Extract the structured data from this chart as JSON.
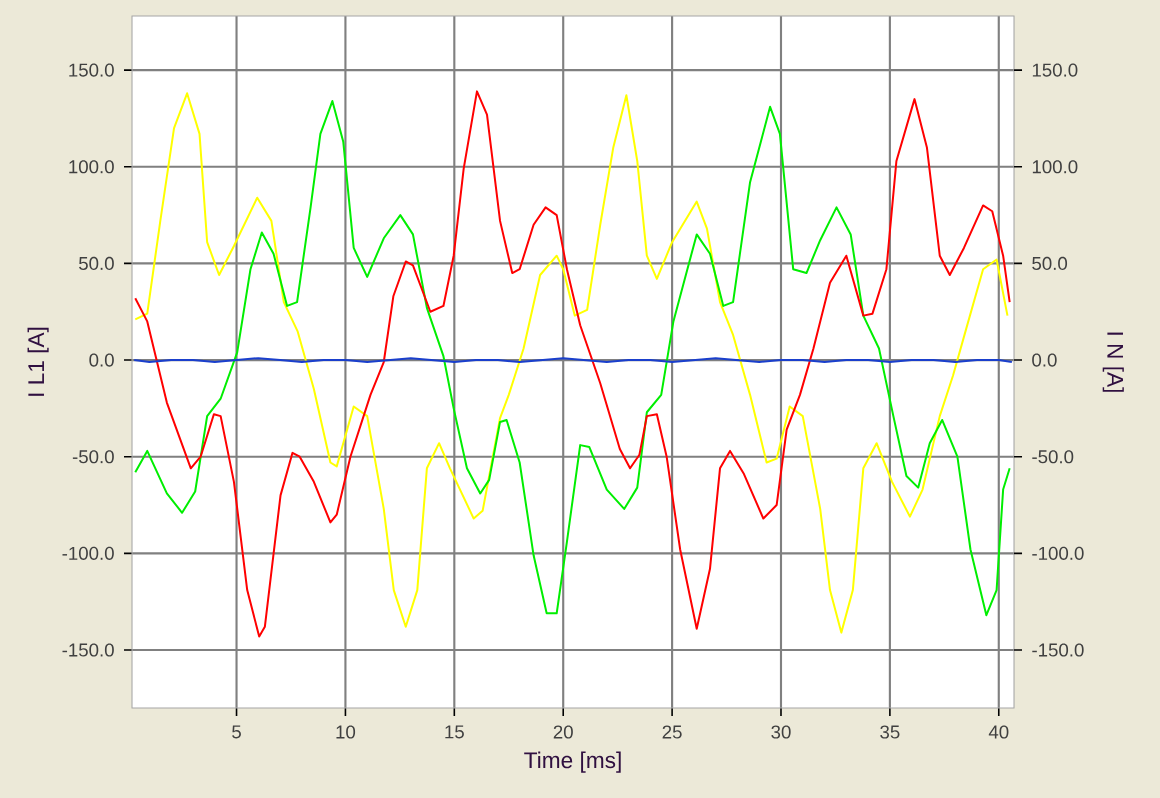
{
  "chart_data": {
    "type": "line",
    "xlabel": "Time [ms]",
    "ylabel": "I L1 [A]",
    "y2label": "I N [A]",
    "xlim": [
      0.2,
      40.7
    ],
    "xticks": [
      5,
      10,
      15,
      20,
      25,
      30,
      35,
      40
    ],
    "ylim": [
      -180,
      178
    ],
    "yticks": [
      {
        "value": -150,
        "label": "-150.0"
      },
      {
        "value": -100,
        "label": "-100.0"
      },
      {
        "value": -50,
        "label": "-50.0"
      },
      {
        "value": 0,
        "label": "0.0"
      },
      {
        "value": 50,
        "label": "50.0"
      },
      {
        "value": 100,
        "label": "100.0"
      },
      {
        "value": 150,
        "label": "150.0"
      }
    ],
    "y2lim": [
      -180,
      178
    ],
    "y2ticks": [
      {
        "value": -150,
        "label": "-150.0"
      },
      {
        "value": -100,
        "label": "-100.0"
      },
      {
        "value": -50,
        "label": "-50.0"
      },
      {
        "value": 0,
        "label": "0.0"
      },
      {
        "value": 50,
        "label": "50.0"
      },
      {
        "value": 100,
        "label": "100.0"
      },
      {
        "value": 150,
        "label": "150.0"
      }
    ],
    "grid": true,
    "series": [
      {
        "color": "#ffff00",
        "x": [
          0.35,
          0.9,
          1.5,
          2.13,
          2.73,
          3.3,
          3.65,
          4.2,
          4.88,
          5.95,
          6.6,
          7.17,
          7.8,
          8.55,
          9.31,
          9.6,
          10.38,
          11.0,
          11.76,
          12.22,
          12.77,
          13.3,
          13.74,
          14.3,
          14.8,
          15.89,
          16.3,
          17.1,
          17.5,
          18.18,
          18.94,
          19.7,
          20.0,
          20.53,
          21.1,
          21.7,
          22.3,
          22.9,
          23.4,
          23.84,
          24.3,
          25.0,
          26.13,
          26.6,
          27.2,
          27.8,
          28.58,
          29.34,
          29.8,
          30.4,
          31.0,
          31.8,
          32.25,
          32.77,
          33.3,
          33.78,
          34.39,
          35.1,
          35.92,
          36.5,
          37.29,
          37.9,
          38.5,
          39.28,
          39.9,
          40.4
        ],
        "values": [
          21,
          24,
          72,
          120,
          138,
          117,
          61,
          44,
          59,
          84,
          72,
          30,
          15,
          -15,
          -53,
          -55,
          -24,
          -29,
          -77,
          -119,
          -138,
          -119,
          -56,
          -43,
          -56,
          -82,
          -78,
          -30,
          -18,
          6,
          44,
          54,
          47,
          23,
          26,
          70,
          110,
          137,
          103,
          54,
          42,
          61,
          82,
          68,
          30,
          13,
          -18,
          -53,
          -51,
          -24,
          -29,
          -77,
          -119,
          -141,
          -119,
          -56,
          -43,
          -63,
          -81,
          -67,
          -29,
          -8,
          16,
          47,
          52,
          23
        ]
      },
      {
        "color": "#00ee00",
        "x": [
          0.35,
          0.9,
          1.8,
          2.5,
          3.1,
          3.65,
          4.27,
          5.03,
          5.64,
          6.16,
          6.7,
          7.32,
          7.78,
          8.4,
          8.85,
          9.4,
          9.9,
          10.38,
          11.0,
          11.76,
          12.52,
          13.1,
          13.74,
          14.5,
          14.97,
          15.58,
          16.19,
          16.6,
          17.1,
          17.4,
          18.0,
          18.64,
          19.24,
          19.7,
          20.17,
          20.78,
          21.2,
          22.0,
          22.8,
          23.4,
          23.84,
          24.5,
          25.06,
          26.13,
          26.74,
          27.35,
          27.8,
          28.58,
          29.5,
          29.95,
          30.56,
          31.17,
          31.8,
          32.55,
          33.2,
          33.78,
          34.5,
          35.16,
          35.76,
          36.3,
          36.83,
          37.4,
          38.1,
          38.7,
          39.43,
          39.9,
          40.2,
          40.5
        ],
        "values": [
          -58,
          -47,
          -69,
          -79,
          -68,
          -29,
          -20,
          4,
          47,
          66,
          55,
          28,
          30,
          79,
          117,
          134,
          113,
          58,
          43,
          63,
          75,
          65,
          27,
          2,
          -25,
          -56,
          -69,
          -62,
          -32,
          -31,
          -53,
          -101,
          -131,
          -131,
          -94,
          -44,
          -45,
          -67,
          -77,
          -66,
          -27,
          -18,
          20,
          65,
          55,
          28,
          30,
          92,
          131,
          117,
          47,
          45,
          62,
          79,
          65,
          23,
          6,
          -29,
          -60,
          -66,
          -43,
          -31,
          -50,
          -98,
          -132,
          -119,
          -67,
          -56
        ]
      },
      {
        "color": "#ff0000",
        "x": [
          0.35,
          0.9,
          1.8,
          2.9,
          3.35,
          3.96,
          4.27,
          4.88,
          5.49,
          6.04,
          6.3,
          7.02,
          7.57,
          7.9,
          8.55,
          9.31,
          9.6,
          10.23,
          11.15,
          11.76,
          12.2,
          12.77,
          13.1,
          13.9,
          14.5,
          14.97,
          15.43,
          16.04,
          16.5,
          17.1,
          17.66,
          18.0,
          18.64,
          19.19,
          19.7,
          20.17,
          20.78,
          21.7,
          22.6,
          23.07,
          23.5,
          23.84,
          24.3,
          24.75,
          25.37,
          26.13,
          26.74,
          27.2,
          27.66,
          28.3,
          29.19,
          29.8,
          30.26,
          30.87,
          31.49,
          32.25,
          33.0,
          33.78,
          34.2,
          34.84,
          35.3,
          36.13,
          36.7,
          37.29,
          37.75,
          38.4,
          39.28,
          39.7,
          40.2,
          40.5
        ],
        "values": [
          32,
          20,
          -22,
          -56,
          -50,
          -28,
          -29,
          -63,
          -119,
          -143,
          -138,
          -70,
          -48,
          -50,
          -63,
          -84,
          -80,
          -50,
          -18,
          -1,
          33,
          51,
          49,
          25,
          28,
          54,
          99,
          139,
          127,
          72,
          45,
          47,
          70,
          79,
          75,
          47,
          18,
          -12,
          -46,
          -56,
          -49,
          -29,
          -28,
          -50,
          -98,
          -139,
          -108,
          -56,
          -47,
          -59,
          -82,
          -75,
          -36,
          -18,
          6,
          40,
          54,
          23,
          24,
          47,
          103,
          135,
          110,
          54,
          44,
          58,
          80,
          77,
          54,
          30
        ]
      },
      {
        "color": "#1a3fcc",
        "axis": "y2",
        "x": [
          0.3,
          1,
          2,
          3,
          4,
          5,
          6,
          7,
          8,
          9,
          10,
          11,
          12,
          13,
          14,
          15,
          16,
          17,
          18,
          19,
          20,
          21,
          22,
          23,
          24,
          25,
          26,
          27,
          28,
          29,
          30,
          31,
          32,
          33,
          34,
          35,
          36,
          37,
          38,
          39,
          40,
          40.6
        ],
        "values": [
          0,
          -1,
          0,
          0,
          -1,
          0,
          1,
          0,
          -1,
          0,
          0,
          -1,
          0,
          1,
          0,
          -1,
          0,
          0,
          -1,
          0,
          1,
          0,
          -1,
          0,
          0,
          -1,
          0,
          1,
          0,
          -1,
          0,
          0,
          -1,
          0,
          0,
          -1,
          0,
          0,
          -1,
          0,
          0,
          -1
        ]
      }
    ]
  }
}
